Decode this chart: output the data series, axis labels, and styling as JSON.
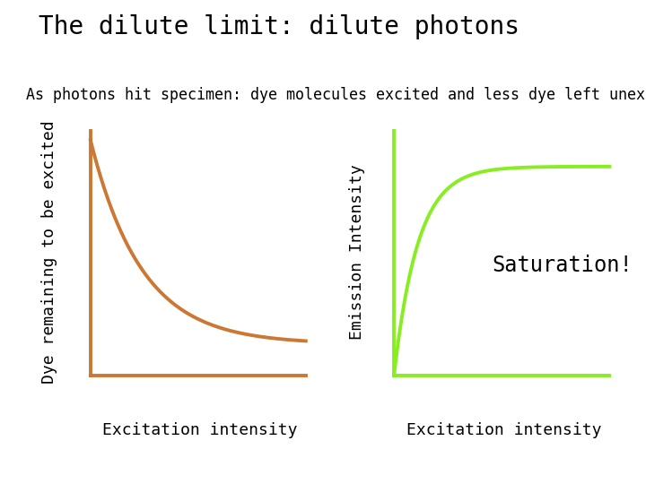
{
  "title": "The dilute limit: dilute photons",
  "subtitle": "As photons hit specimen: dye molecules excited and less dye left unexcited",
  "left_ylabel": "Dye remaining to be excited",
  "left_xlabel": "Excitation intensity",
  "right_ylabel": "Emission Intensity",
  "right_xlabel": "Excitation intensity",
  "saturation_label": "Saturation!",
  "left_curve_color": "#CC7733",
  "right_curve_color": "#88EE22",
  "background_color": "#ffffff",
  "title_fontsize": 20,
  "subtitle_fontsize": 12,
  "label_fontsize": 13,
  "saturation_fontsize": 17
}
